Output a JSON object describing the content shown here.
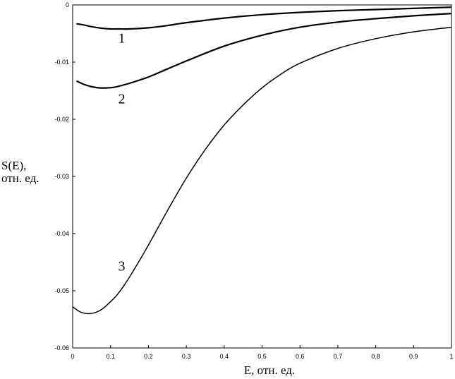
{
  "chart_data": {
    "type": "line",
    "xlabel": "E, отн. ед.",
    "ylabel_line1": "S(E),",
    "ylabel_line2": "отн. ед.",
    "xlim": [
      0,
      1
    ],
    "ylim": [
      -0.06,
      0
    ],
    "xticks": [
      0,
      0.1,
      0.2,
      0.3,
      0.4,
      0.5,
      0.6,
      0.7,
      0.8,
      0.9,
      1
    ],
    "xtick_labels": [
      "0",
      "0.1",
      "0.2",
      "0.3",
      "0.4",
      "0.5",
      "0.6",
      "0.7",
      "0.8",
      "0.9",
      "1"
    ],
    "yticks": [
      0,
      -0.01,
      -0.02,
      -0.03,
      -0.04,
      -0.05,
      -0.06
    ],
    "ytick_labels": [
      "0",
      "-0.01",
      "-0.02",
      "-0.03",
      "-0.04",
      "-0.05",
      "-0.06"
    ],
    "grid": false,
    "legend": "none",
    "series": [
      {
        "label": "1",
        "label_at": [
          0.12,
          -0.0066
        ],
        "x": [
          0.01,
          0.03,
          0.05,
          0.08,
          0.1,
          0.12,
          0.15,
          0.2,
          0.25,
          0.3,
          0.4,
          0.5,
          0.6,
          0.7,
          0.8,
          0.9,
          1.0
        ],
        "y": [
          -0.0033,
          -0.0035,
          -0.0038,
          -0.0041,
          -0.0042,
          -0.0042,
          -0.0042,
          -0.004,
          -0.0036,
          -0.0031,
          -0.0023,
          -0.0017,
          -0.0013,
          -0.001,
          -0.0008,
          -0.0006,
          -0.0004
        ]
      },
      {
        "label": "2",
        "label_at": [
          0.12,
          -0.0172
        ],
        "x": [
          0.01,
          0.03,
          0.05,
          0.07,
          0.09,
          0.11,
          0.15,
          0.2,
          0.25,
          0.3,
          0.4,
          0.5,
          0.6,
          0.7,
          0.8,
          0.9,
          1.0
        ],
        "y": [
          -0.0133,
          -0.0139,
          -0.0143,
          -0.0145,
          -0.0145,
          -0.0144,
          -0.0137,
          -0.0126,
          -0.0112,
          -0.0098,
          -0.0072,
          -0.0053,
          -0.0039,
          -0.003,
          -0.0024,
          -0.0019,
          -0.0015
        ]
      },
      {
        "label": "3",
        "label_at": [
          0.12,
          -0.0465
        ],
        "x": [
          0.0,
          0.02,
          0.04,
          0.06,
          0.08,
          0.1,
          0.12,
          0.15,
          0.2,
          0.25,
          0.3,
          0.35,
          0.4,
          0.45,
          0.5,
          0.55,
          0.6,
          0.7,
          0.8,
          0.9,
          1.0
        ],
        "y": [
          -0.0528,
          -0.0537,
          -0.054,
          -0.0538,
          -0.0531,
          -0.0519,
          -0.0505,
          -0.0476,
          -0.042,
          -0.036,
          -0.0303,
          -0.0253,
          -0.021,
          -0.0175,
          -0.0145,
          -0.0121,
          -0.0102,
          -0.0076,
          -0.0059,
          -0.0047,
          -0.0039
        ]
      }
    ]
  }
}
